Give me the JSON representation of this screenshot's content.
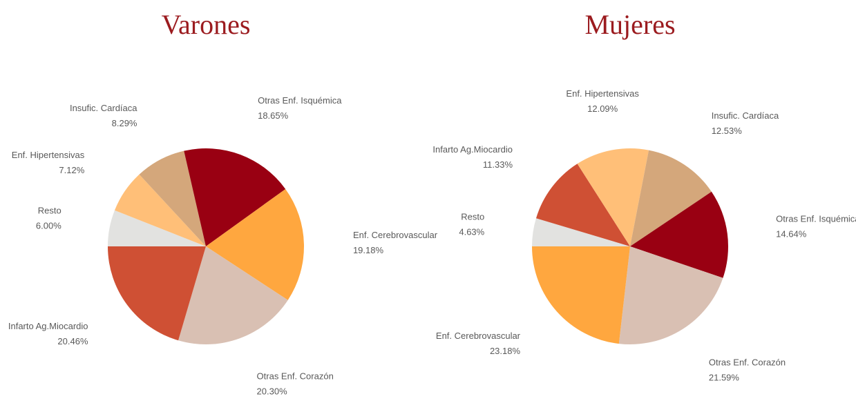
{
  "chart_data": [
    {
      "type": "pie",
      "title": "Varones",
      "categories": [
        "Resto",
        "Enf. Hipertensivas",
        "Insufic. Cardíaca",
        "Otras Enf. Isquémica",
        "Enf. Cerebrovascular",
        "Otras Enf. Corazón",
        "Infarto Ag.Miocardio"
      ],
      "values": [
        6.0,
        7.12,
        8.29,
        18.65,
        19.18,
        20.3,
        20.46
      ],
      "value_labels": [
        "6.00%",
        "7.12%",
        "8.29%",
        "18.65%",
        "19.18%",
        "20.30%",
        "20.46%"
      ],
      "colors": [
        "#e2e2e0",
        "#ffbf78",
        "#d4a77b",
        "#990012",
        "#ffa73f",
        "#d9c0b3",
        "#cf5034"
      ]
    },
    {
      "type": "pie",
      "title": "Mujeres",
      "categories": [
        "Resto",
        "Infarto Ag.Miocardio",
        "Enf. Hipertensivas",
        "Insufic. Cardíaca",
        "Otras Enf. Isquémica",
        "Otras Enf. Corazón",
        "Enf. Cerebrovascular"
      ],
      "values": [
        4.63,
        11.33,
        12.09,
        12.53,
        14.64,
        21.59,
        23.18
      ],
      "value_labels": [
        "4.63%",
        "11.33%",
        "12.09%",
        "12.53%",
        "14.64%",
        "21.59%",
        "23.18%"
      ],
      "colors": [
        "#e2e2e0",
        "#cf5034",
        "#ffbf78",
        "#d4a77b",
        "#990012",
        "#d9c0b3",
        "#ffa73f"
      ]
    }
  ]
}
